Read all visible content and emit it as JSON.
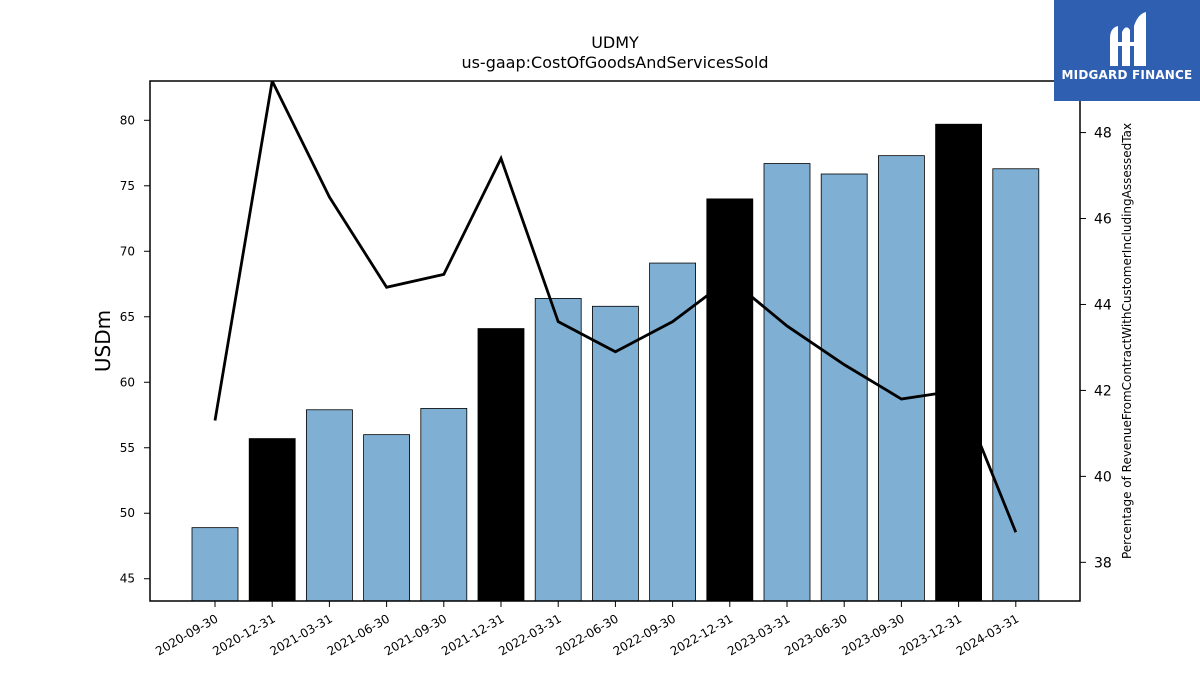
{
  "chart_data": {
    "type": "bar",
    "title": "UDMY",
    "subtitle": "us-gaap:CostOfGoodsAndServicesSold",
    "ylabel": "USDm",
    "y2label": "Percentage of RevenueFromContractWithCustomerIncludingAssessedTax",
    "categories": [
      "2020-09-30",
      "2020-12-31",
      "2021-03-31",
      "2021-06-30",
      "2021-09-30",
      "2021-12-31",
      "2022-03-31",
      "2022-06-30",
      "2022-09-30",
      "2022-12-31",
      "2023-03-31",
      "2023-06-30",
      "2023-09-30",
      "2023-12-31",
      "2024-03-31"
    ],
    "series": [
      {
        "kind": "bar",
        "values": [
          48.9,
          55.7,
          57.9,
          56.0,
          58.0,
          64.1,
          66.4,
          65.8,
          69.1,
          74.0,
          76.7,
          75.9,
          77.3,
          79.7,
          76.3
        ],
        "highlight": [
          false,
          true,
          false,
          false,
          false,
          true,
          false,
          false,
          false,
          true,
          false,
          false,
          false,
          true,
          false
        ]
      },
      {
        "kind": "line",
        "axis": "right",
        "values": [
          41.3,
          49.2,
          46.5,
          44.4,
          44.7,
          47.4,
          43.6,
          42.9,
          43.6,
          44.6,
          43.5,
          42.6,
          41.8,
          42.0,
          38.7
        ]
      }
    ],
    "ylim": [
      43.3,
      83.0
    ],
    "y2lim": [
      37.1,
      49.2
    ],
    "yticks": [
      45,
      50,
      55,
      60,
      65,
      70,
      75,
      80
    ],
    "y2ticks": [
      38,
      40,
      42,
      44,
      46,
      48
    ],
    "colors": {
      "bar": "#7fb0d4",
      "highlight": "#000000",
      "line": "#000000"
    },
    "grid": false,
    "legend": "none"
  },
  "logo": {
    "text": "MIDGARD FINANCE",
    "background": "#2f5fb0"
  }
}
